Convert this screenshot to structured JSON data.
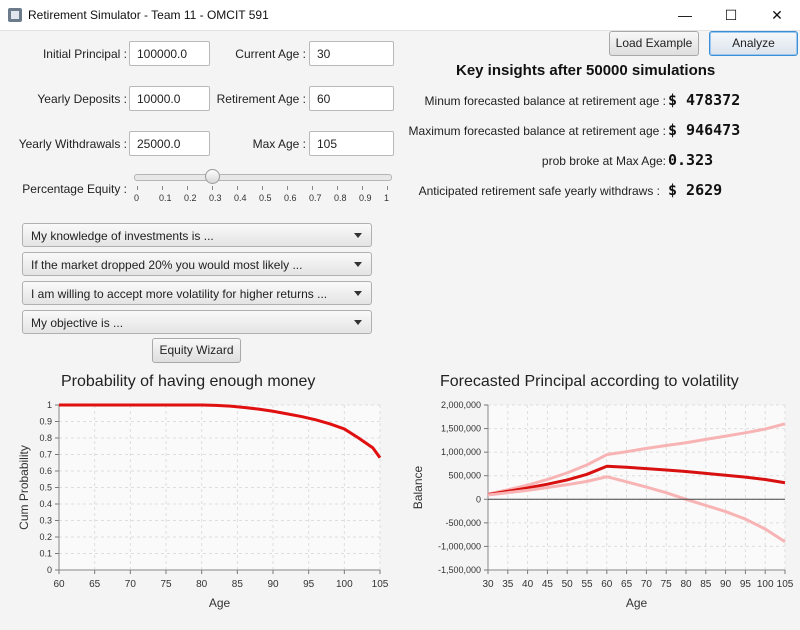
{
  "window": {
    "title": "Retirement Simulator - Team 11 - OMCIT 591",
    "minimize": "—",
    "maximize": "☐",
    "close": "✕"
  },
  "toolbar": {
    "load_example": "Load Example",
    "analyze": "Analyze"
  },
  "form": {
    "initial_principal_label": "Initial Principal :",
    "initial_principal_value": "100000.0",
    "current_age_label": "Current Age :",
    "current_age_value": "30",
    "yearly_deposits_label": "Yearly Deposits :",
    "yearly_deposits_value": "10000.0",
    "retirement_age_label": "Retirement Age :",
    "retirement_age_value": "60",
    "yearly_withdrawals_label": "Yearly Withdrawals :",
    "yearly_withdrawals_value": "25000.0",
    "max_age_label": "Max Age :",
    "max_age_value": "105",
    "equity_label": "Percentage Equity :",
    "equity_value": 0.3,
    "equity_ticks": [
      "0",
      "0.1",
      "0.2",
      "0.3",
      "0.4",
      "0.5",
      "0.6",
      "0.7",
      "0.8",
      "0.9",
      "1"
    ]
  },
  "questions": [
    "My knowledge of investments is ...",
    "If the market dropped 20% you would most likely ...",
    "I am willing to accept more volatility for higher returns ...",
    "My objective is ..."
  ],
  "equity_wizard": "Equity Wizard",
  "insights": {
    "heading": "Key insights after 50000 simulations",
    "min_label": "Minum forecasted balance at retirement age :",
    "min_value": "$ 478372",
    "max_label": "Maximum forecasted balance at retirement age :",
    "max_value": "$ 946473",
    "broke_label": "prob broke at Max Age:",
    "broke_value": "0.323",
    "safe_label": "Anticipated retirement safe yearly withdraws :",
    "safe_value": "$ 2629"
  },
  "chart_data": [
    {
      "type": "line",
      "title": "Probability of having enough money",
      "xlabel": "Age",
      "ylabel": "Cum Probability",
      "xlim": [
        60,
        105
      ],
      "ylim": [
        0,
        1
      ],
      "x_ticks": [
        "60",
        "65",
        "70",
        "75",
        "80",
        "85",
        "90",
        "95",
        "100",
        "105"
      ],
      "y_ticks": [
        "0",
        "0.1",
        "0.2",
        "0.3",
        "0.4",
        "0.5",
        "0.6",
        "0.7",
        "0.8",
        "0.9",
        "1"
      ],
      "grid": true,
      "color": "#e01010",
      "series": [
        {
          "x": [
            60,
            65,
            70,
            75,
            80,
            82,
            84,
            86,
            88,
            90,
            92,
            94,
            96,
            98,
            100,
            102,
            104,
            105
          ],
          "values": [
            1,
            1,
            1,
            1,
            1,
            0.998,
            0.993,
            0.985,
            0.975,
            0.962,
            0.946,
            0.93,
            0.91,
            0.885,
            0.855,
            0.8,
            0.74,
            0.68
          ]
        }
      ]
    },
    {
      "type": "line",
      "title": "Forecasted Principal according to volatility",
      "xlabel": "Age",
      "ylabel": "Balance",
      "xlim": [
        30,
        105
      ],
      "ylim": [
        -1500000,
        2000000
      ],
      "x_ticks": [
        "30",
        "35",
        "40",
        "45",
        "50",
        "55",
        "60",
        "65",
        "70",
        "75",
        "80",
        "85",
        "90",
        "95",
        "100",
        "105"
      ],
      "y_ticks": [
        "-1,500,000",
        "-1,000,000",
        "-500,000",
        "0",
        "500,000",
        "1,000,000",
        "1,500,000",
        "2,000,000"
      ],
      "grid": true,
      "series": [
        {
          "color": "#f8b4b4",
          "x": [
            30,
            35,
            40,
            45,
            50,
            55,
            60,
            65,
            70,
            75,
            80,
            85,
            90,
            95,
            100,
            105
          ],
          "values": [
            110000,
            200000,
            300000,
            420000,
            560000,
            730000,
            946473,
            1010000,
            1080000,
            1140000,
            1200000,
            1270000,
            1340000,
            1410000,
            1490000,
            1600000
          ]
        },
        {
          "color": "#d81010",
          "x": [
            30,
            35,
            40,
            45,
            50,
            55,
            60,
            65,
            70,
            75,
            80,
            85,
            90,
            95,
            100,
            105
          ],
          "values": [
            100000,
            170000,
            240000,
            320000,
            410000,
            530000,
            700000,
            680000,
            650000,
            620000,
            590000,
            550000,
            510000,
            470000,
            420000,
            350000
          ]
        },
        {
          "color": "#f8b4b4",
          "x": [
            30,
            35,
            40,
            45,
            50,
            55,
            60,
            65,
            70,
            75,
            80,
            85,
            90,
            95,
            100,
            105
          ],
          "values": [
            90000,
            140000,
            190000,
            250000,
            310000,
            380000,
            478372,
            370000,
            260000,
            140000,
            0,
            -130000,
            -260000,
            -420000,
            -630000,
            -900000
          ]
        },
        {
          "color": "#444444",
          "x": [
            30,
            105
          ],
          "values": [
            0,
            0
          ]
        }
      ]
    }
  ]
}
